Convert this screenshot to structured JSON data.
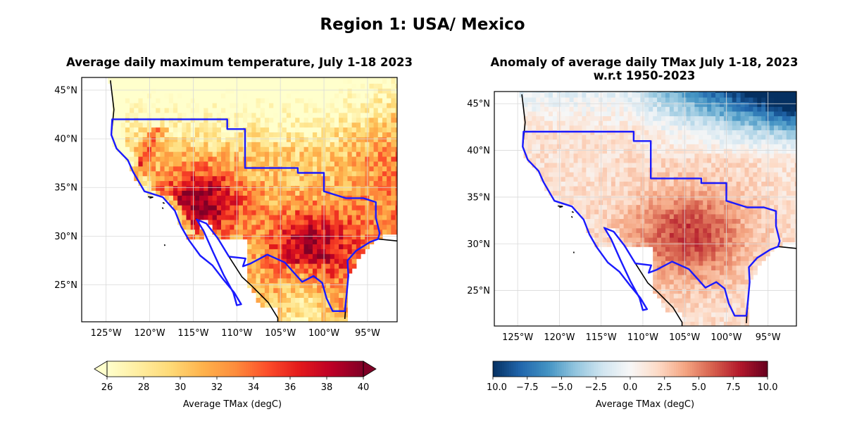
{
  "suptitle": "Region 1: USA/ Mexico",
  "panels": [
    {
      "id": "tmax",
      "title": "Average daily maximum temperature, July 1-18 2023",
      "title_line2": "",
      "lon_ticks": [
        "125°W",
        "120°W",
        "115°W",
        "110°W",
        "105°W",
        "100°W",
        "95°W"
      ],
      "lat_ticks": [
        "45°N",
        "40°N",
        "35°N",
        "30°N",
        "25°N"
      ],
      "colorbar": {
        "cmap": "YlOrRd",
        "ticks": [
          "26",
          "28",
          "30",
          "32",
          "34",
          "36",
          "38",
          "40"
        ],
        "label": "Average TMax (degC)",
        "min": 26,
        "max": 40,
        "extend": "both"
      }
    },
    {
      "id": "anomaly",
      "title": "Anomaly of average daily TMax July 1-18, 2023",
      "title_line2": "w.r.t 1950-2023",
      "lon_ticks": [
        "125°W",
        "120°W",
        "115°W",
        "110°W",
        "105°W",
        "100°W",
        "95°W"
      ],
      "lat_ticks": [
        "45°N",
        "40°N",
        "35°N",
        "30°N",
        "25°N"
      ],
      "colorbar": {
        "cmap": "RdBu_r",
        "ticks": [
          "−10.0",
          "−7.5",
          "−5.0",
          "−2.5",
          "0.0",
          "2.5",
          "5.0",
          "7.5",
          "10.0"
        ],
        "label": "Average TMax (degC)",
        "min": -10,
        "max": 10,
        "extend": "neither"
      }
    }
  ],
  "colors": {
    "region_outline": "#1a1aff",
    "coastline": "#000000",
    "gridline": "#d9d9d9"
  }
}
